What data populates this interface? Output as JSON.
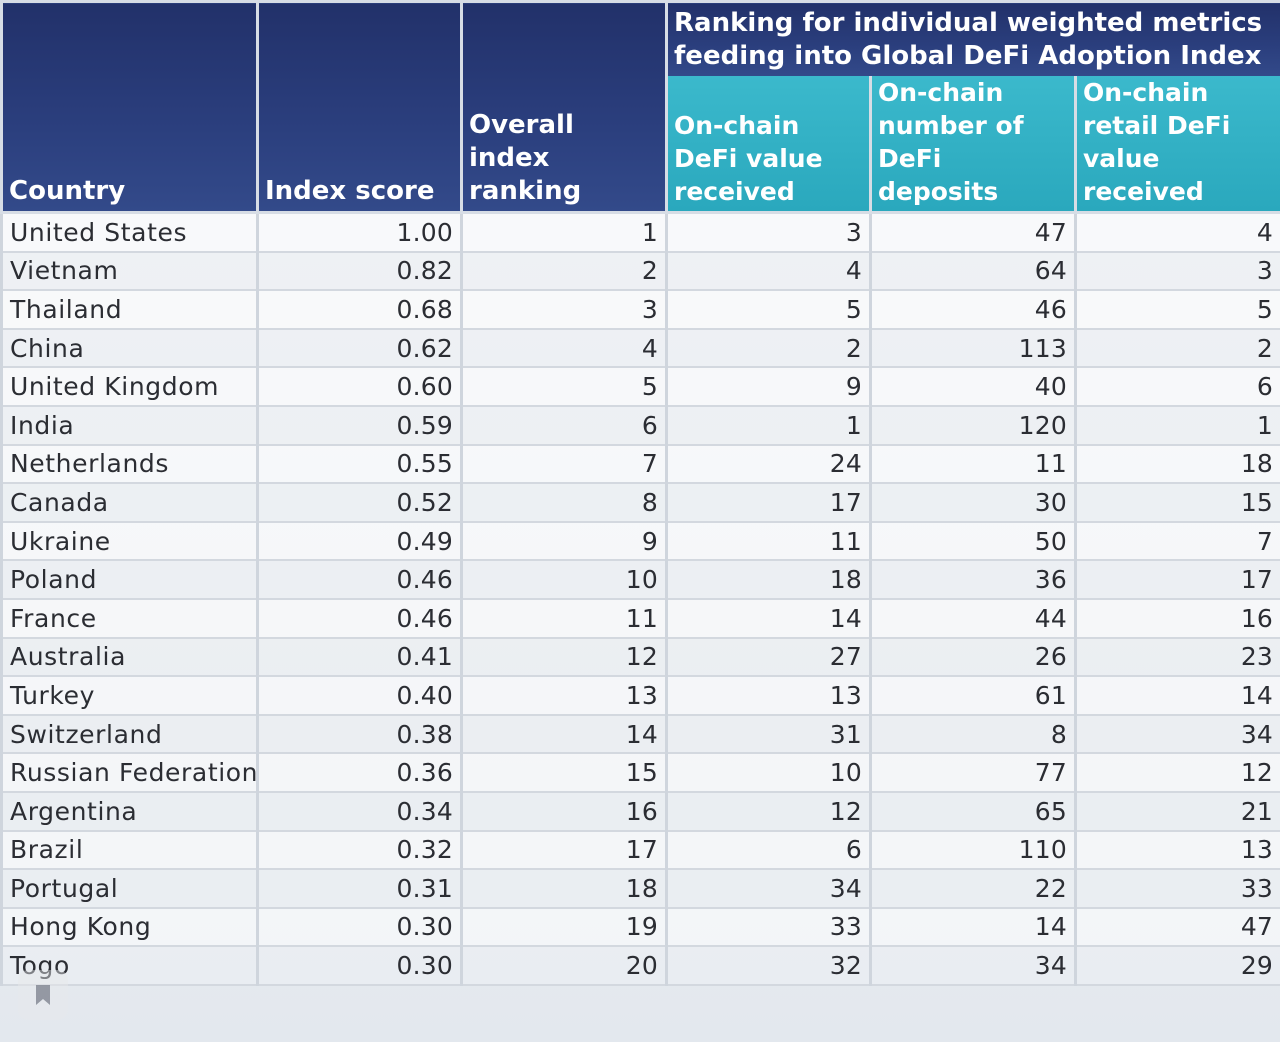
{
  "table": {
    "headers": {
      "country": "Country",
      "index_score": "Index score",
      "overall_ranking": "Overall index ranking",
      "group": "Ranking for individual weighted metrics feeding into Global DeFi Adoption Index",
      "metric1": "On-chain DeFi value received",
      "metric2": "On-chain number of DeFi deposits",
      "metric3": "On-chain retail DeFi value received"
    },
    "rows": [
      {
        "country": "United States",
        "score": "1.00",
        "rank": "1",
        "m1": "3",
        "m2": "47",
        "m3": "4"
      },
      {
        "country": "Vietnam",
        "score": "0.82",
        "rank": "2",
        "m1": "4",
        "m2": "64",
        "m3": "3"
      },
      {
        "country": "Thailand",
        "score": "0.68",
        "rank": "3",
        "m1": "5",
        "m2": "46",
        "m3": "5"
      },
      {
        "country": "China",
        "score": "0.62",
        "rank": "4",
        "m1": "2",
        "m2": "113",
        "m3": "2"
      },
      {
        "country": "United Kingdom",
        "score": "0.60",
        "rank": "5",
        "m1": "9",
        "m2": "40",
        "m3": "6"
      },
      {
        "country": "India",
        "score": "0.59",
        "rank": "6",
        "m1": "1",
        "m2": "120",
        "m3": "1"
      },
      {
        "country": "Netherlands",
        "score": "0.55",
        "rank": "7",
        "m1": "24",
        "m2": "11",
        "m3": "18"
      },
      {
        "country": "Canada",
        "score": "0.52",
        "rank": "8",
        "m1": "17",
        "m2": "30",
        "m3": "15"
      },
      {
        "country": "Ukraine",
        "score": "0.49",
        "rank": "9",
        "m1": "11",
        "m2": "50",
        "m3": "7"
      },
      {
        "country": "Poland",
        "score": "0.46",
        "rank": "10",
        "m1": "18",
        "m2": "36",
        "m3": "17"
      },
      {
        "country": "France",
        "score": "0.46",
        "rank": "11",
        "m1": "14",
        "m2": "44",
        "m3": "16"
      },
      {
        "country": "Australia",
        "score": "0.41",
        "rank": "12",
        "m1": "27",
        "m2": "26",
        "m3": "23"
      },
      {
        "country": "Turkey",
        "score": "0.40",
        "rank": "13",
        "m1": "13",
        "m2": "61",
        "m3": "14"
      },
      {
        "country": "Switzerland",
        "score": "0.38",
        "rank": "14",
        "m1": "31",
        "m2": "8",
        "m3": "34"
      },
      {
        "country": "Russian Federation",
        "score": "0.36",
        "rank": "15",
        "m1": "10",
        "m2": "77",
        "m3": "12"
      },
      {
        "country": "Argentina",
        "score": "0.34",
        "rank": "16",
        "m1": "12",
        "m2": "65",
        "m3": "21"
      },
      {
        "country": "Brazil",
        "score": "0.32",
        "rank": "17",
        "m1": "6",
        "m2": "110",
        "m3": "13"
      },
      {
        "country": "Portugal",
        "score": "0.31",
        "rank": "18",
        "m1": "34",
        "m2": "22",
        "m3": "33"
      },
      {
        "country": "Hong Kong",
        "score": "0.30",
        "rank": "19",
        "m1": "33",
        "m2": "14",
        "m3": "47"
      },
      {
        "country": "Togo",
        "score": "0.30",
        "rank": "20",
        "m1": "32",
        "m2": "34",
        "m3": "29"
      }
    ]
  },
  "overlay": {
    "icon": "bookmark-icon"
  },
  "colors": {
    "header_navy": "#2b3f7e",
    "header_teal": "#33b1c5"
  }
}
